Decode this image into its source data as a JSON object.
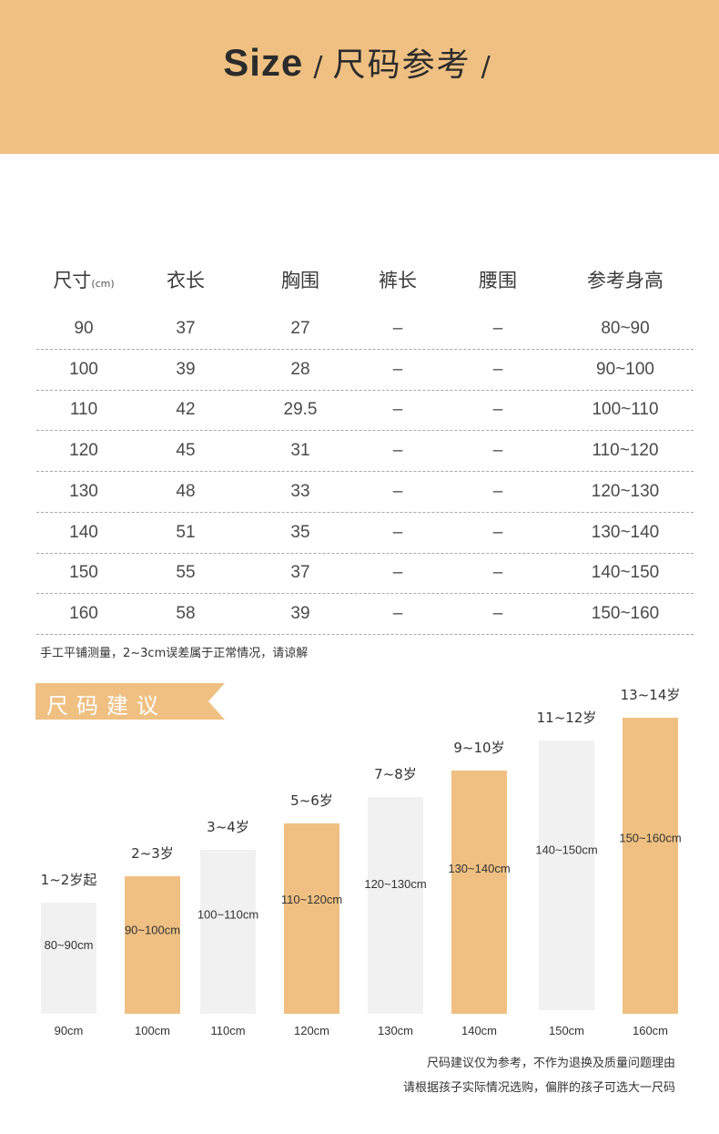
{
  "header": {
    "title_en": "Size",
    "separator": "/",
    "title_zh": "尺码参考",
    "trailing": "/",
    "band_color": "#efc082"
  },
  "size_table": {
    "headers": [
      "尺寸",
      "衣长",
      "胸围",
      "裤长",
      "腰围",
      "参考身高"
    ],
    "unit": "(cm)",
    "rows": [
      [
        "90",
        "37",
        "27",
        "–",
        "–",
        "80~90"
      ],
      [
        "100",
        "39",
        "28",
        "–",
        "–",
        "90~100"
      ],
      [
        "110",
        "42",
        "29.5",
        "–",
        "–",
        "100~110"
      ],
      [
        "120",
        "45",
        "31",
        "–",
        "–",
        "110~120"
      ],
      [
        "130",
        "48",
        "33",
        "–",
        "–",
        "120~130"
      ],
      [
        "140",
        "51",
        "35",
        "–",
        "–",
        "130~140"
      ],
      [
        "150",
        "55",
        "37",
        "–",
        "–",
        "140~150"
      ],
      [
        "160",
        "58",
        "39",
        "–",
        "–",
        "150~160"
      ]
    ]
  },
  "notes": {
    "measure": "手工平铺测量，2~3cm误差属于正常情况，请谅解",
    "suggestion_1": "尺码建议仅为参考，不作为退换及质量问题理由",
    "suggestion_2": "请根据孩子实际情况选购，偏胖的孩子可选大一尺码"
  },
  "banner": {
    "label": "尺码建议",
    "color": "#efc082"
  },
  "chart_data": {
    "type": "bar",
    "categories": [
      "90cm",
      "100cm",
      "110cm",
      "120cm",
      "130cm",
      "140cm",
      "150cm",
      "160cm"
    ],
    "age_labels": [
      "1~2岁起",
      "2~3岁",
      "3~4岁",
      "5~6岁",
      "7~8岁",
      "9~10岁",
      "11~12岁",
      "13~14岁"
    ],
    "height_labels": [
      "80~90cm",
      "90~100cm",
      "100~110cm",
      "110~120cm",
      "120~130cm",
      "130~140cm",
      "140~150cm",
      "150~160cm"
    ],
    "values": [
      90,
      100,
      110,
      120,
      130,
      140,
      150,
      160
    ],
    "colors": {
      "accent": "#efc082",
      "light": "#f1f1f1"
    }
  }
}
